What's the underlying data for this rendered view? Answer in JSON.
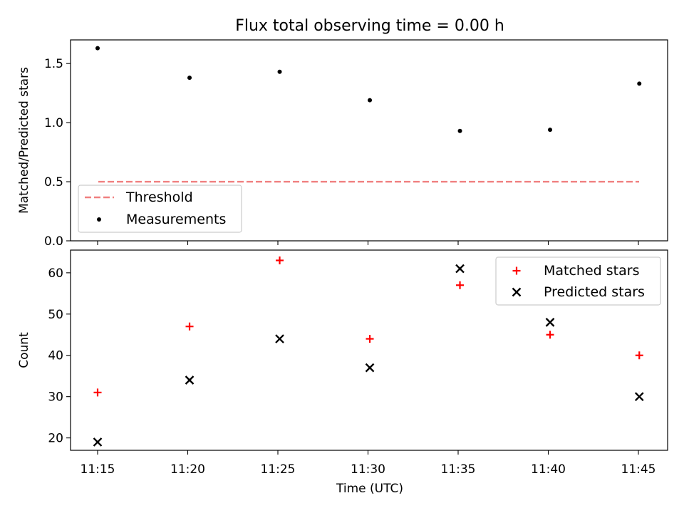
{
  "title": "Flux total observing time = 0.00 h",
  "chart_data": [
    {
      "type": "scatter",
      "ylabel": "Matched/Predicted stars",
      "xlabel": "",
      "yticks": [
        "0.0",
        "0.5",
        "1.0",
        "1.5"
      ],
      "ytick_values": [
        0.0,
        0.5,
        1.0,
        1.5
      ],
      "ylim": [
        0.0,
        1.7
      ],
      "legend": {
        "position": "lower-left",
        "entries": [
          "Threshold",
          "Measurements"
        ]
      },
      "series": [
        {
          "name": "Threshold",
          "kind": "dashed-line",
          "color": "#f08080",
          "x": [
            "11:15",
            "11:45"
          ],
          "y": [
            0.5,
            0.5
          ]
        },
        {
          "name": "Measurements",
          "kind": "dot",
          "color": "#000000",
          "x": [
            "11:15",
            "11:20",
            "11:25",
            "11:30",
            "11:35",
            "11:40",
            "11:45"
          ],
          "y": [
            1.63,
            1.38,
            1.43,
            1.19,
            0.93,
            0.94,
            1.33
          ]
        }
      ]
    },
    {
      "type": "scatter",
      "ylabel": "Count",
      "xlabel": "Time (UTC)",
      "xticks": [
        "11:15",
        "11:20",
        "11:25",
        "11:30",
        "11:35",
        "11:40",
        "11:45"
      ],
      "yticks": [
        "20",
        "30",
        "40",
        "50",
        "60"
      ],
      "ytick_values": [
        20,
        30,
        40,
        50,
        60
      ],
      "ylim": [
        17,
        65.5
      ],
      "legend": {
        "position": "upper-right",
        "entries": [
          "Matched stars",
          "Predicted stars"
        ]
      },
      "series": [
        {
          "name": "Matched stars",
          "kind": "plus",
          "color": "#ff0000",
          "x": [
            "11:15",
            "11:20",
            "11:25",
            "11:30",
            "11:35",
            "11:40",
            "11:45"
          ],
          "y": [
            31,
            47,
            63,
            44,
            57,
            45,
            40
          ]
        },
        {
          "name": "Predicted stars",
          "kind": "x",
          "color": "#000000",
          "x": [
            "11:15",
            "11:20",
            "11:25",
            "11:30",
            "11:35",
            "11:40",
            "11:45"
          ],
          "y": [
            19,
            34,
            44,
            37,
            61,
            48,
            30
          ]
        }
      ]
    }
  ]
}
